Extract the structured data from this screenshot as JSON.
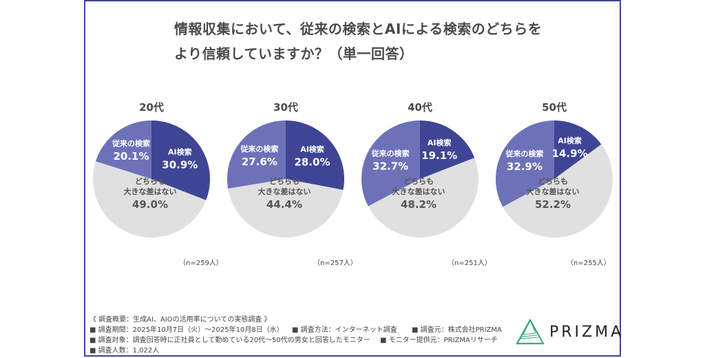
{
  "title": {
    "line1": "情報収集において、従来の検索とAIによる検索のどちらを",
    "line2": "より信頼していますか？（単一回答）"
  },
  "colors": {
    "ai": "#3f4595",
    "traditional": "#6d72b8",
    "neither": "#e0e0e0",
    "frame": "#3f4595"
  },
  "chart_data": {
    "type": "pie",
    "title": "情報収集において、従来の検索とAIによる検索のどちらをより信頼していますか？（単一回答）",
    "categories": [
      "AI検索",
      "どちらも大きな差はない",
      "従来の検索"
    ],
    "charts": [
      {
        "group": "20代",
        "n_label": "（n=259人）",
        "slices": [
          {
            "label": "AI検索",
            "value": 30.9,
            "display": "30.9%"
          },
          {
            "label": "どちらも大きな差はない",
            "value": 49.0,
            "display": "49.0%"
          },
          {
            "label": "従来の検索",
            "value": 20.1,
            "display": "20.1%"
          }
        ]
      },
      {
        "group": "30代",
        "n_label": "（n=257人）",
        "slices": [
          {
            "label": "AI検索",
            "value": 28.0,
            "display": "28.0%"
          },
          {
            "label": "どちらも大きな差はない",
            "value": 44.4,
            "display": "44.4%"
          },
          {
            "label": "従来の検索",
            "value": 27.6,
            "display": "27.6%"
          }
        ]
      },
      {
        "group": "40代",
        "n_label": "（n=251人）",
        "slices": [
          {
            "label": "AI検索",
            "value": 19.1,
            "display": "19.1%"
          },
          {
            "label": "どちらも大きな差はない",
            "value": 48.2,
            "display": "48.2%"
          },
          {
            "label": "従来の検索",
            "value": 32.7,
            "display": "32.7%"
          }
        ]
      },
      {
        "group": "50代",
        "n_label": "（n=255人）",
        "slices": [
          {
            "label": "AI検索",
            "value": 14.9,
            "display": "14.9%"
          },
          {
            "label": "どちらも大きな差はない",
            "value": 52.2,
            "display": "52.2%"
          },
          {
            "label": "従来の検索",
            "value": 32.9,
            "display": "32.9%"
          }
        ]
      }
    ],
    "slice_label_lines": {
      "ai": [
        "AI検索"
      ],
      "neither": [
        "どちらも",
        "大きな差はない"
      ],
      "traditional": [
        "従来の検索"
      ]
    }
  },
  "footer": {
    "heading": "《 調査概要：生成AI、AIOの活用率についての実態調査 》",
    "period": "■ 調査期間：2025年10月7日（火）～2025年10月8日（水）",
    "method": "■ 調査方法：インターネット調査",
    "source": "■ 調査元：株式会社PRIZMA",
    "target": "■ 調査対象：調査回答時に正社員として勤めている20代～50代の男女と回答したモニター",
    "provider": "■ モニター提供元：PRIZMAリサーチ",
    "count": "■ 調査人数：1,022人"
  },
  "logo": {
    "text": "PRIZMA",
    "icon": "prism-triangle-icon"
  }
}
